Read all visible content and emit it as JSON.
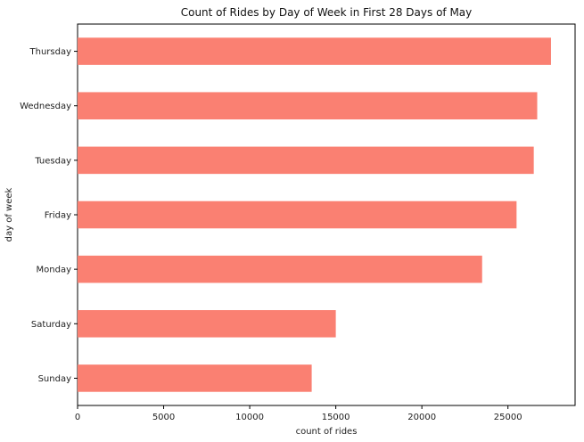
{
  "chart_data": {
    "type": "bar",
    "orientation": "horizontal",
    "title": "Count of Rides by Day of Week in First 28 Days of May",
    "xlabel": "count of rides",
    "ylabel": "day of week",
    "categories": [
      "Thursday",
      "Wednesday",
      "Tuesday",
      "Friday",
      "Monday",
      "Saturday",
      "Sunday"
    ],
    "values": [
      27500,
      26700,
      26500,
      25500,
      23500,
      15000,
      13600
    ],
    "xlim": [
      0,
      28900
    ],
    "xticks": [
      0,
      5000,
      10000,
      15000,
      20000,
      25000
    ],
    "xtick_labels": [
      "0",
      "5000",
      "10000",
      "15000",
      "20000",
      "25000"
    ],
    "bar_color": "#fa8072",
    "grid": false,
    "legend": "none"
  }
}
